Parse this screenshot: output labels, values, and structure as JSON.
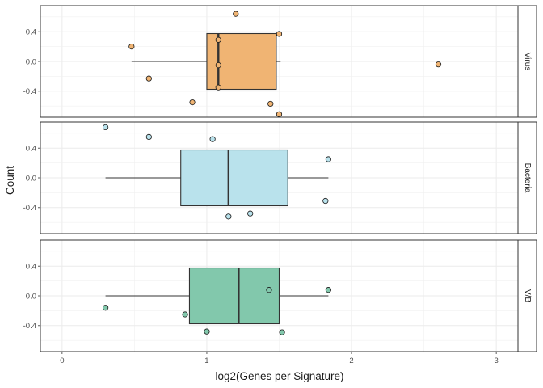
{
  "chart_data": {
    "type": "box",
    "xlabel": "log2(Genes per Signature)",
    "ylabel": "Count",
    "x_ticks": [
      0,
      1,
      2,
      3
    ],
    "x_tick_labels": [
      "0",
      "1",
      "2",
      "3"
    ],
    "xlim": [
      -0.15,
      3.15
    ],
    "y_ticks": [
      -0.4,
      0.0,
      0.4
    ],
    "y_tick_labels": [
      "-0.4",
      "0.0",
      "0.4"
    ],
    "ylim": [
      -0.75,
      0.75
    ],
    "grid": true,
    "panels": [
      {
        "strip": "Virus",
        "fill": "#F0B473",
        "box": {
          "whisker_low": 0.48,
          "q1": 1.0,
          "median": 1.08,
          "q3": 1.48,
          "whisker_high": 1.51
        },
        "points": [
          {
            "x": 1.2,
            "y": 0.64
          },
          {
            "x": 0.48,
            "y": 0.2
          },
          {
            "x": 1.5,
            "y": 0.37
          },
          {
            "x": 1.08,
            "y": 0.29
          },
          {
            "x": 1.08,
            "y": -0.05
          },
          {
            "x": 0.6,
            "y": -0.23
          },
          {
            "x": 1.08,
            "y": -0.35
          },
          {
            "x": 2.6,
            "y": -0.04
          },
          {
            "x": 0.9,
            "y": -0.55
          },
          {
            "x": 1.44,
            "y": -0.57
          },
          {
            "x": 1.5,
            "y": -0.71
          }
        ]
      },
      {
        "strip": "Bacteria",
        "fill": "#B9E2EC",
        "box": {
          "whisker_low": 0.3,
          "q1": 0.82,
          "median": 1.15,
          "q3": 1.56,
          "whisker_high": 1.84
        },
        "points": [
          {
            "x": 0.3,
            "y": 0.68
          },
          {
            "x": 0.6,
            "y": 0.55
          },
          {
            "x": 1.04,
            "y": 0.52
          },
          {
            "x": 1.84,
            "y": 0.25
          },
          {
            "x": 1.82,
            "y": -0.31
          },
          {
            "x": 1.3,
            "y": -0.48
          },
          {
            "x": 1.15,
            "y": -0.52
          }
        ]
      },
      {
        "strip": "V/B",
        "fill": "#82C8AC",
        "box": {
          "whisker_low": 0.3,
          "q1": 0.88,
          "median": 1.22,
          "q3": 1.5,
          "whisker_high": 1.84
        },
        "points": [
          {
            "x": 1.43,
            "y": 0.08
          },
          {
            "x": 1.84,
            "y": 0.08
          },
          {
            "x": 0.3,
            "y": -0.16
          },
          {
            "x": 0.85,
            "y": -0.25
          },
          {
            "x": 1.0,
            "y": -0.48
          },
          {
            "x": 1.52,
            "y": -0.49
          }
        ]
      }
    ]
  }
}
